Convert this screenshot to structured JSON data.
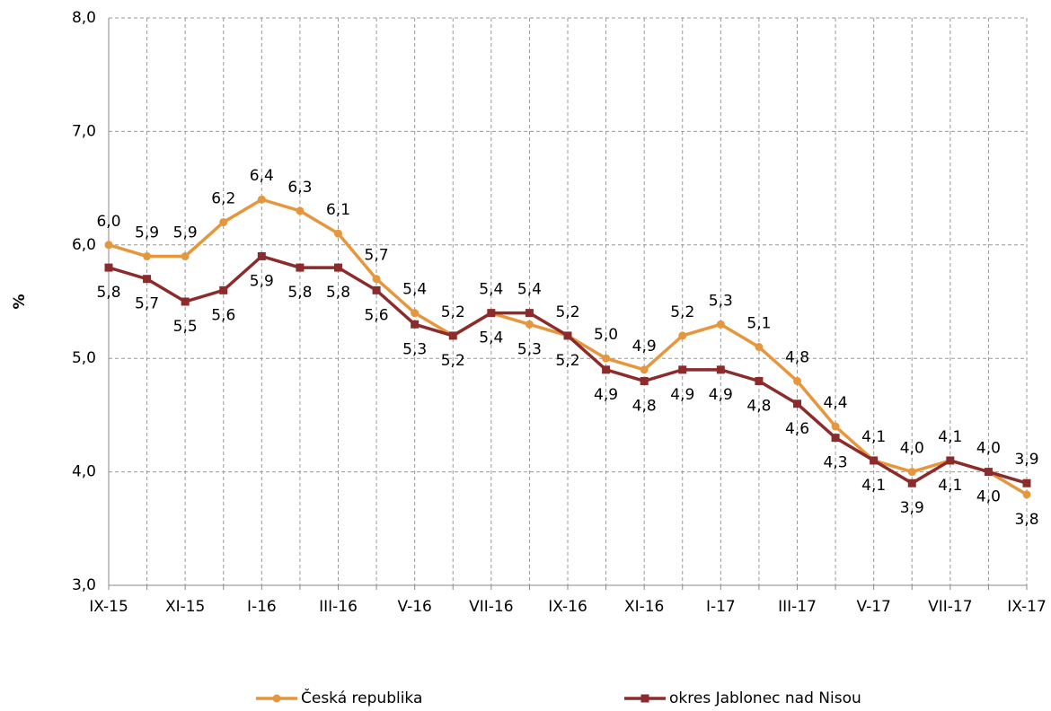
{
  "chart_data": {
    "type": "line",
    "y_label": "%",
    "categories": [
      "IX-15",
      null,
      "XI-15",
      null,
      "I-16",
      null,
      "III-16",
      null,
      "V-16",
      null,
      "VII-16",
      null,
      "IX-16",
      null,
      "XI-16",
      null,
      "I-17",
      null,
      "III-17",
      null,
      "V-17",
      null,
      "VII-17",
      null,
      "IX-17"
    ],
    "series": [
      {
        "name": "Česká republika",
        "color": "#e6963c",
        "marker": "circle",
        "values": [
          6.0,
          5.9,
          5.9,
          6.2,
          6.4,
          6.3,
          6.1,
          5.7,
          5.4,
          5.2,
          5.4,
          5.3,
          5.2,
          5.0,
          4.9,
          5.2,
          5.3,
          5.1,
          4.8,
          4.4,
          4.1,
          4.0,
          4.1,
          4.0,
          3.8
        ],
        "value_labels": [
          "6,0",
          "5,9",
          "5,9",
          "6,2",
          "6,4",
          "6,3",
          "6,1",
          "5,7",
          "5,4",
          "5,2",
          "5,4",
          "5,3",
          "5,2",
          "5,0",
          "4,9",
          "5,2",
          "5,3",
          "5,1",
          "4,8",
          "4,4",
          "4,1",
          "4,0",
          "4,1",
          "4,0",
          "3,8"
        ]
      },
      {
        "name": "okres Jablonec nad Nisou",
        "color": "#8b2b2b",
        "marker": "square",
        "values": [
          5.8,
          5.7,
          5.5,
          5.6,
          5.9,
          5.8,
          5.8,
          5.6,
          5.3,
          5.2,
          5.4,
          5.4,
          5.2,
          4.9,
          4.8,
          4.9,
          4.9,
          4.8,
          4.6,
          4.3,
          4.1,
          3.9,
          4.1,
          4.0,
          3.9
        ],
        "value_labels": [
          "5,8",
          "5,7",
          "5,5",
          "5,6",
          "5,9",
          "5,8",
          "5,8",
          "5,6",
          "5,3",
          "5,2",
          "5,4",
          "5,4",
          "5,2",
          "4,9",
          "4,8",
          "4,9",
          "4,9",
          "4,8",
          "4,6",
          "4,3",
          "4,1",
          "3,9",
          "4,1",
          "4,0",
          "3,9"
        ]
      }
    ],
    "ylim": [
      3,
      8
    ],
    "yticks": [
      {
        "value": 3,
        "label": "3,0"
      },
      {
        "value": 4,
        "label": "4,0"
      },
      {
        "value": 5,
        "label": "5,0"
      },
      {
        "value": 6,
        "label": "6,0"
      },
      {
        "value": 7,
        "label": "7,0"
      },
      {
        "value": 8,
        "label": "8,0"
      }
    ],
    "grid": true
  }
}
